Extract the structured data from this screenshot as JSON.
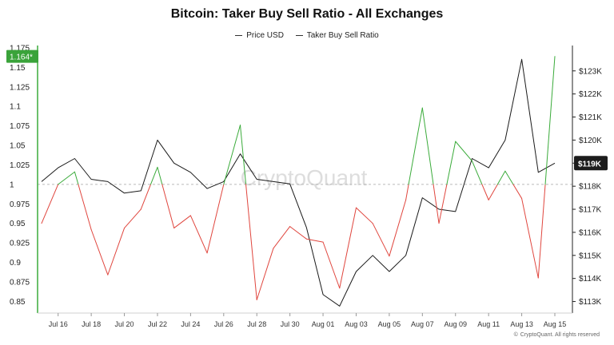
{
  "chart_data": {
    "type": "line",
    "title": "Bitcoin: Taker Buy Sell Ratio - All Exchanges",
    "legend": [
      "Price USD",
      "Taker Buy Sell Ratio"
    ],
    "legend_position": "top-center",
    "watermark": "CryptoQuant",
    "footer": "CryptoQuant. All rights reserved",
    "left_axis": {
      "ylim": [
        0.835,
        1.178
      ],
      "ticks": [
        0.85,
        0.875,
        0.9,
        0.925,
        0.95,
        0.975,
        1,
        1.025,
        1.05,
        1.075,
        1.1,
        1.125,
        1.15,
        1.175
      ],
      "tick_labels": [
        "0.85",
        "0.875",
        "0.9",
        "0.925",
        "0.95",
        "0.975",
        "1",
        "1.025",
        "1.05",
        "1.075",
        "1.1",
        "1.125",
        "1.15",
        "1.175"
      ],
      "current_label": "1.164*",
      "current_value": 1.164
    },
    "right_axis": {
      "ylim": [
        112.5,
        124.1
      ],
      "ticks": [
        113,
        114,
        115,
        116,
        117,
        118,
        119,
        120,
        121,
        122,
        123
      ],
      "tick_labels": [
        "$113K",
        "$114K",
        "$115K",
        "$116K",
        "$117K",
        "$118K",
        "$119K",
        "$120K",
        "$121K",
        "$122K",
        "$123K"
      ],
      "highlight_label": "$119K",
      "highlight_value": 119.0
    },
    "baseline": 1,
    "x_ticks": [
      {
        "label": "Jul 16",
        "index": 1
      },
      {
        "label": "Jul 18",
        "index": 3
      },
      {
        "label": "Jul 20",
        "index": 5
      },
      {
        "label": "Jul 22",
        "index": 7
      },
      {
        "label": "Jul 24",
        "index": 9
      },
      {
        "label": "Jul 26",
        "index": 11
      },
      {
        "label": "Jul 28",
        "index": 13
      },
      {
        "label": "Jul 30",
        "index": 15
      },
      {
        "label": "Aug 01",
        "index": 17
      },
      {
        "label": "Aug 03",
        "index": 19
      },
      {
        "label": "Aug 05",
        "index": 21
      },
      {
        "label": "Aug 07",
        "index": 23
      },
      {
        "label": "Aug 09",
        "index": 25
      },
      {
        "label": "Aug 11",
        "index": 27
      },
      {
        "label": "Aug 13",
        "index": 29
      },
      {
        "label": "Aug 15",
        "index": 31
      }
    ],
    "series": [
      {
        "name": "Taker Buy Sell Ratio",
        "axis": "left",
        "values": [
          0.95,
          1.0,
          1.016,
          0.942,
          0.884,
          0.944,
          0.968,
          1.022,
          0.944,
          0.96,
          0.912,
          1.0,
          1.076,
          0.852,
          0.918,
          0.946,
          0.93,
          0.926,
          0.867,
          0.97,
          0.95,
          0.908,
          0.98,
          1.098,
          0.95,
          1.055,
          1.03,
          0.98,
          1.017,
          0.982,
          0.88,
          1.164
        ]
      },
      {
        "name": "Price USD",
        "axis": "right",
        "values": [
          118.2,
          118.8,
          119.2,
          118.3,
          118.2,
          117.7,
          117.8,
          120.0,
          119.0,
          118.6,
          117.9,
          118.2,
          119.4,
          118.3,
          118.2,
          118.1,
          116.2,
          113.3,
          112.8,
          114.3,
          115.0,
          114.3,
          115.0,
          117.5,
          117.0,
          116.9,
          119.2,
          118.8,
          120.0,
          123.5,
          118.6,
          119.0
        ]
      }
    ],
    "colors": {
      "up": "#3aab3a",
      "down": "#e0463e",
      "price": "#1a1a1a",
      "badge_green": "#3aa33a",
      "badge_dark": "#1c1c1c",
      "grid": "#bbbbbb"
    }
  }
}
